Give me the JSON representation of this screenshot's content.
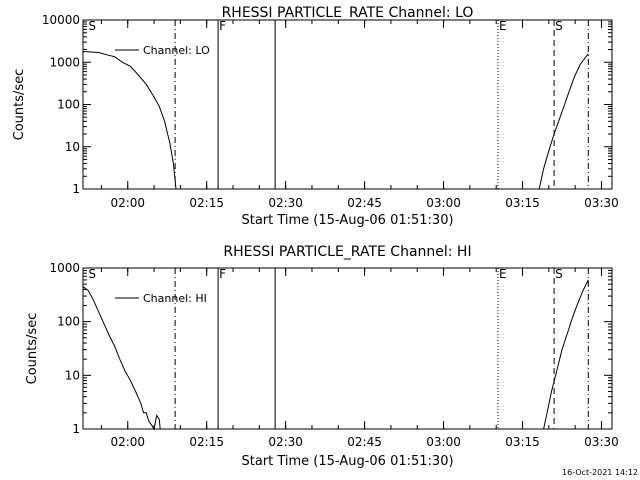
{
  "timestamp": "16-Oct-2021 14:12",
  "chart_data": [
    {
      "type": "line",
      "title": "RHESSI PARTICLE_RATE Channel: LO",
      "xlabel": "Start Time (15-Aug-06 01:51:30)",
      "ylabel": "Counts/sec",
      "y_scale": "log",
      "ylim": [
        1,
        10000
      ],
      "xlim": [
        "01:51:30",
        "03:32:00"
      ],
      "x_ticks": [
        "02:00",
        "02:15",
        "02:30",
        "02:45",
        "03:00",
        "03:15",
        "03:30"
      ],
      "y_ticks": [
        "1",
        "10",
        "100",
        "1000",
        "10000"
      ],
      "legend": "top-left",
      "grid": false,
      "markers": [
        {
          "time": "01:52:20",
          "label": "S",
          "style": "none"
        },
        {
          "time": "02:09:00",
          "label": "",
          "style": "dash-dot"
        },
        {
          "time": "02:17:10",
          "label": "F",
          "style": "solid"
        },
        {
          "time": "02:28:00",
          "label": "",
          "style": "solid"
        },
        {
          "time": "03:10:20",
          "label": "E",
          "style": "dotted"
        },
        {
          "time": "03:21:00",
          "label": "S",
          "style": "dashed"
        },
        {
          "time": "03:27:30",
          "label": "",
          "style": "dash-dot"
        }
      ],
      "series": [
        {
          "name": "Channel: LO",
          "segments": [
            {
              "x": [
                "01:51:30",
                "01:53:00",
                "01:54:30",
                "01:56:00",
                "01:57:30",
                "01:59:00",
                "02:00:30",
                "02:02:00",
                "02:03:30",
                "02:05:00",
                "02:06:00",
                "02:07:00",
                "02:08:00",
                "02:08:40",
                "02:09:10"
              ],
              "y": [
                1800,
                1750,
                1700,
                1500,
                1350,
                1000,
                800,
                500,
                300,
                150,
                90,
                40,
                12,
                4,
                1
              ]
            },
            {
              "x": [
                "03:18:10",
                "03:19:00",
                "03:20:00",
                "03:21:00",
                "03:22:00",
                "03:23:00",
                "03:24:00",
                "03:25:00",
                "03:26:00",
                "03:27:30"
              ],
              "y": [
                1,
                3,
                8,
                20,
                45,
                100,
                230,
                500,
                900,
                1600
              ]
            }
          ]
        }
      ]
    },
    {
      "type": "line",
      "title": "RHESSI PARTICLE_RATE Channel: HI",
      "xlabel": "Start Time (15-Aug-06 01:51:30)",
      "ylabel": "Counts/sec",
      "y_scale": "log",
      "ylim": [
        1,
        1000
      ],
      "xlim": [
        "01:51:30",
        "03:32:00"
      ],
      "x_ticks": [
        "02:00",
        "02:15",
        "02:30",
        "02:45",
        "03:00",
        "03:15",
        "03:30"
      ],
      "y_ticks": [
        "1",
        "10",
        "100",
        "1000"
      ],
      "legend": "top-left",
      "grid": false,
      "markers": [
        {
          "time": "01:52:20",
          "label": "S",
          "style": "none"
        },
        {
          "time": "02:09:00",
          "label": "",
          "style": "dash-dot"
        },
        {
          "time": "02:17:10",
          "label": "F",
          "style": "solid"
        },
        {
          "time": "02:28:00",
          "label": "",
          "style": "solid"
        },
        {
          "time": "03:10:20",
          "label": "E",
          "style": "dotted"
        },
        {
          "time": "03:21:00",
          "label": "S",
          "style": "dashed"
        },
        {
          "time": "03:27:30",
          "label": "",
          "style": "dash-dot"
        }
      ],
      "series": [
        {
          "name": "Channel: HI",
          "segments": [
            {
              "x": [
                "01:51:30",
                "01:52:30",
                "01:53:30",
                "01:54:30",
                "01:55:30",
                "01:56:30",
                "01:57:30",
                "01:58:30",
                "01:59:30",
                "02:00:30",
                "02:01:30",
                "02:02:30",
                "02:03:00",
                "02:03:30",
                "02:04:00",
                "02:04:30",
                "02:05:00",
                "02:05:30",
                "02:06:00",
                "02:06:10"
              ],
              "y": [
                450,
                380,
                250,
                150,
                90,
                55,
                35,
                20,
                12,
                8,
                5,
                3,
                2,
                2,
                1.4,
                1.2,
                1,
                1.8,
                1.5,
                1
              ]
            },
            {
              "x": [
                "03:19:00",
                "03:19:40",
                "03:20:30",
                "03:21:30",
                "03:22:30",
                "03:23:30",
                "03:24:30",
                "03:25:30",
                "03:26:30",
                "03:27:30"
              ],
              "y": [
                1,
                2,
                5,
                12,
                30,
                60,
                120,
                220,
                380,
                600
              ]
            }
          ]
        }
      ]
    }
  ]
}
